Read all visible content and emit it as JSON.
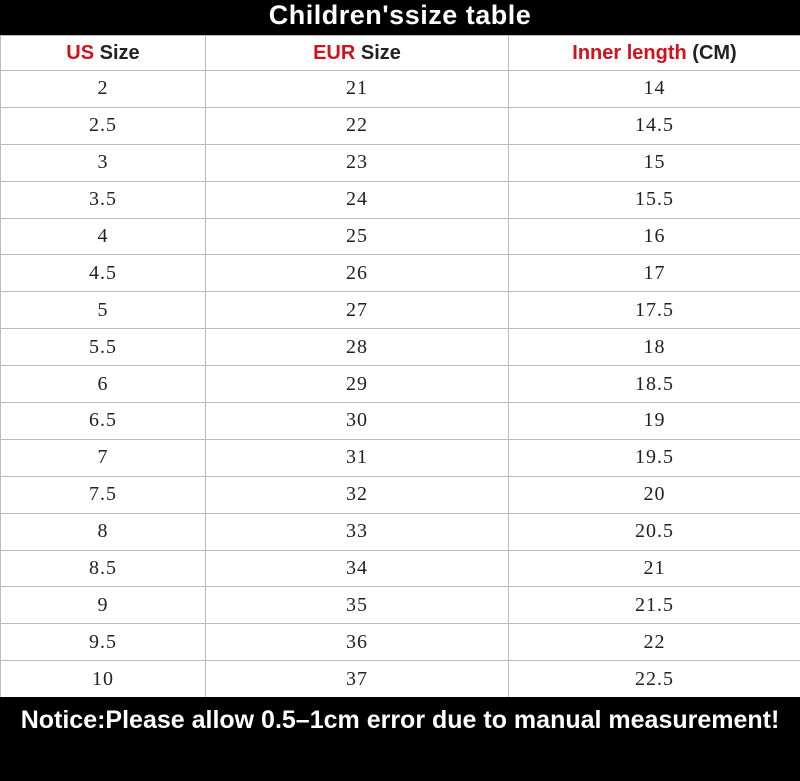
{
  "header": {
    "title": "Children'ssize table"
  },
  "table": {
    "columns": [
      {
        "highlight": "US",
        "text": "Size"
      },
      {
        "highlight": "EUR",
        "text": "Size"
      },
      {
        "highlight": "Inner length",
        "text": "(CM)"
      }
    ],
    "rows": [
      [
        "2",
        "21",
        "14"
      ],
      [
        "2.5",
        "22",
        "14.5"
      ],
      [
        "3",
        "23",
        "15"
      ],
      [
        "3.5",
        "24",
        "15.5"
      ],
      [
        "4",
        "25",
        "16"
      ],
      [
        "4.5",
        "26",
        "17"
      ],
      [
        "5",
        "27",
        "17.5"
      ],
      [
        "5.5",
        "28",
        "18"
      ],
      [
        "6",
        "29",
        "18.5"
      ],
      [
        "6.5",
        "30",
        "19"
      ],
      [
        "7",
        "31",
        "19.5"
      ],
      [
        "7.5",
        "32",
        "20"
      ],
      [
        "8",
        "33",
        "20.5"
      ],
      [
        "8.5",
        "34",
        "21"
      ],
      [
        "9",
        "35",
        "21.5"
      ],
      [
        "9.5",
        "36",
        "22"
      ],
      [
        "10",
        "37",
        "22.5"
      ]
    ]
  },
  "footer": {
    "notice": "Notice:Please allow 0.5–1cm error due to manual measurement!"
  }
}
